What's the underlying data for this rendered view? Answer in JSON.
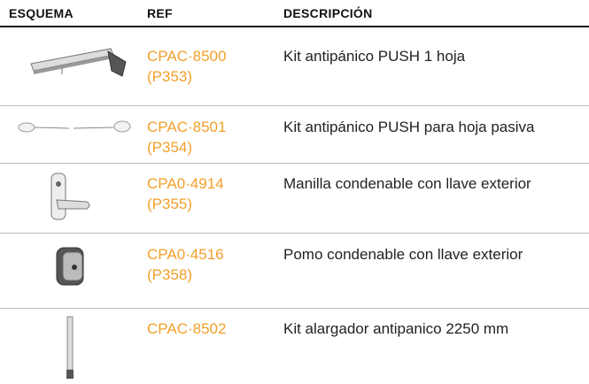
{
  "table": {
    "header": [
      "ESQUEMA",
      "REF",
      "DESCRIPCIÓN"
    ],
    "rows": [
      {
        "ref": "CPAC·8500",
        "code": "(P353)",
        "description": "Kit antipánico PUSH 1 hoja"
      },
      {
        "ref": "CPAC·8501",
        "code": "(P354)",
        "description": "Kit antipánico PUSH para hoja pasiva"
      },
      {
        "ref": "CPA0·4914",
        "code": "(P355)",
        "description": "Manilla condenable con llave exterior"
      },
      {
        "ref": "CPA0·4516",
        "code": "(P358)",
        "description": "Pomo condenable con llave exterior"
      },
      {
        "ref": "CPAC·8502",
        "description": "Kit alargador antipanico 2250 mm"
      }
    ]
  }
}
